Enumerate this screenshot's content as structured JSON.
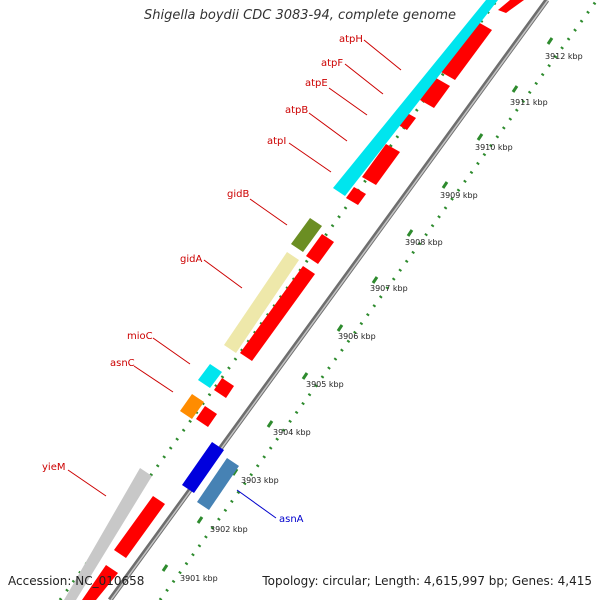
{
  "title": "Shigella boydii CDC 3083-94, complete genome",
  "footer": {
    "accession": "Accession: NC_010658",
    "summary": "Topology: circular; Length: 4,615,997 bp; Genes: 4,415"
  },
  "colors": {
    "background": "#ffffff",
    "axis": "#9a9a9a",
    "tick": "#2e8b2e",
    "minus_strand_cds": "#ff0000",
    "label_red": "#cc0000",
    "label_blue": "#0000cc"
  },
  "scale": {
    "unit": "kbp",
    "labels": [
      {
        "id": "t3901",
        "text": "3901 kbp"
      },
      {
        "id": "t3902",
        "text": "3902 kbp"
      },
      {
        "id": "t3903",
        "text": "3903 kbp"
      },
      {
        "id": "t3904",
        "text": "3904 kbp"
      },
      {
        "id": "t3905",
        "text": "3905 kbp"
      },
      {
        "id": "t3906",
        "text": "3906 kbp"
      },
      {
        "id": "t3907",
        "text": "3907 kbp"
      },
      {
        "id": "t3908",
        "text": "3908 kbp"
      },
      {
        "id": "t3909",
        "text": "3909 kbp"
      },
      {
        "id": "t3910",
        "text": "3910 kbp"
      },
      {
        "id": "t3911",
        "text": "3911 kbp"
      },
      {
        "id": "t3912",
        "text": "3912 kbp"
      }
    ]
  },
  "gene_labels": [
    {
      "id": "atpH",
      "text": "atpH",
      "color": "#cc0000"
    },
    {
      "id": "atpF",
      "text": "atpF",
      "color": "#cc0000"
    },
    {
      "id": "atpE",
      "text": "atpE",
      "color": "#cc0000"
    },
    {
      "id": "atpB",
      "text": "atpB",
      "color": "#cc0000"
    },
    {
      "id": "atpI",
      "text": "atpI",
      "color": "#cc0000"
    },
    {
      "id": "gidB",
      "text": "gidB",
      "color": "#cc0000"
    },
    {
      "id": "gidA",
      "text": "gidA",
      "color": "#cc0000"
    },
    {
      "id": "mioC",
      "text": "mioC",
      "color": "#cc0000"
    },
    {
      "id": "asnC",
      "text": "asnC",
      "color": "#cc0000"
    },
    {
      "id": "yieM",
      "text": "yieM",
      "color": "#cc0000"
    },
    {
      "id": "asnA",
      "text": "asnA",
      "color": "#0000cc"
    }
  ],
  "features": [
    {
      "id": "atp-operon",
      "color": "#00e5ee"
    },
    {
      "id": "gidB",
      "color": "#6b8e23"
    },
    {
      "id": "gidA",
      "color": "#eee8aa"
    },
    {
      "id": "mioC",
      "color": "#00e5ee"
    },
    {
      "id": "asnC",
      "color": "#ff8c00"
    },
    {
      "id": "yieM",
      "color": "#c8c8c8"
    },
    {
      "id": "asnA-1",
      "color": "#0000dd"
    },
    {
      "id": "asnA-2",
      "color": "#4682b4"
    }
  ]
}
